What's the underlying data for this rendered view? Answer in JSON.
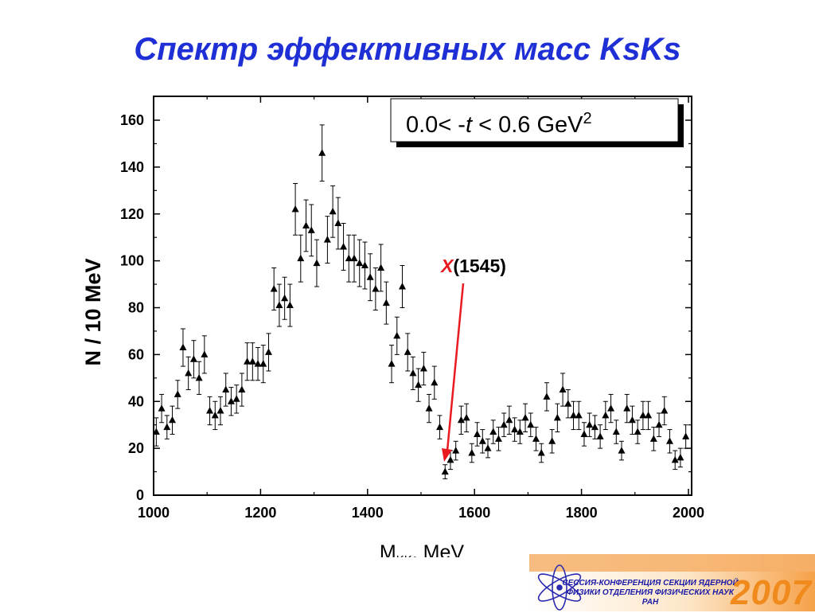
{
  "slide": {
    "title": "Спектр эффективных масс KsKs"
  },
  "chart_data": {
    "type": "scatter",
    "title": "",
    "xlabel_main": "M",
    "xlabel_sub": "KK",
    "xlabel_tail": ", MeV",
    "ylabel": "N / 10 MeV",
    "xlim": [
      1000,
      2000
    ],
    "ylim": [
      0,
      160
    ],
    "x_ticks": [
      "1000",
      "1200",
      "1400",
      "1600",
      "1800",
      "2000"
    ],
    "y_ticks": [
      "0",
      "20",
      "40",
      "60",
      "80",
      "100",
      "120",
      "140",
      "160"
    ],
    "legend_box": {
      "prefix": "0.0< -",
      "var": "t",
      "middle": " < 0.6 GeV",
      "sup": "2",
      "placement": "top-right"
    },
    "annotation": {
      "label_var": "X",
      "label_rest": "(1545)",
      "x": 1545,
      "y": 14,
      "color": "#e8191f"
    },
    "marker": "triangle",
    "series": [
      {
        "x": [
          1005,
          1015,
          1025,
          1035,
          1045,
          1055,
          1065,
          1075,
          1085,
          1095,
          1105,
          1115,
          1125,
          1135,
          1145,
          1155,
          1165,
          1175,
          1185,
          1195,
          1205,
          1215,
          1225,
          1235,
          1245,
          1255,
          1265,
          1275,
          1285,
          1295,
          1305,
          1315,
          1325,
          1335,
          1345,
          1355,
          1365,
          1375,
          1385,
          1395,
          1405,
          1415,
          1425,
          1435,
          1445,
          1455,
          1465,
          1475,
          1485,
          1495,
          1505,
          1515,
          1525,
          1535,
          1545,
          1555,
          1565,
          1575,
          1585,
          1595,
          1605,
          1615,
          1625,
          1635,
          1645,
          1655,
          1665,
          1675,
          1685,
          1695,
          1705,
          1715,
          1725,
          1735,
          1745,
          1755,
          1765,
          1775,
          1785,
          1795,
          1805,
          1815,
          1825,
          1835,
          1845,
          1855,
          1865,
          1875,
          1885,
          1895,
          1905,
          1915,
          1925,
          1935,
          1945,
          1955,
          1965,
          1975,
          1985,
          1995
        ],
        "y": [
          27,
          37,
          29,
          32,
          43,
          63,
          52,
          58,
          50,
          60,
          36,
          34,
          36,
          45,
          40,
          41,
          45,
          57,
          57,
          56,
          56,
          61,
          88,
          81,
          84,
          81,
          122,
          101,
          115,
          113,
          99,
          146,
          109,
          121,
          116,
          106,
          101,
          101,
          99,
          98,
          93,
          88,
          97,
          82,
          56,
          68,
          89,
          61,
          52,
          47,
          54,
          37,
          48,
          29,
          10,
          15,
          19,
          32,
          33,
          18,
          26,
          23,
          20,
          27,
          24,
          30,
          32,
          28,
          27,
          33,
          30,
          24,
          18,
          42,
          23,
          33,
          45,
          39,
          34,
          34,
          26,
          30,
          29,
          25,
          34,
          37,
          27,
          19,
          37,
          32,
          27,
          34,
          34,
          24,
          30,
          36,
          23,
          15,
          16,
          25
        ],
        "err": [
          6,
          6,
          5,
          6,
          6,
          8,
          7,
          8,
          7,
          8,
          6,
          6,
          6,
          7,
          6,
          6,
          7,
          8,
          8,
          7,
          8,
          8,
          9,
          9,
          9,
          9,
          11,
          10,
          11,
          11,
          10,
          12,
          10,
          11,
          11,
          10,
          10,
          10,
          10,
          10,
          10,
          9,
          10,
          9,
          8,
          8,
          9,
          8,
          7,
          7,
          7,
          6,
          7,
          5,
          3,
          4,
          4,
          6,
          6,
          4,
          5,
          5,
          4,
          5,
          5,
          5,
          6,
          5,
          5,
          6,
          5,
          5,
          4,
          6,
          5,
          6,
          7,
          6,
          6,
          6,
          5,
          5,
          5,
          5,
          6,
          6,
          5,
          4,
          6,
          6,
          5,
          6,
          6,
          5,
          5,
          6,
          5,
          4,
          4,
          5
        ]
      }
    ]
  },
  "logo": {
    "line1": "СЕССИЯ-КОНФЕРЕНЦИЯ СЕКЦИИ ЯДЕРНОЙ",
    "line2": "ФИЗИКИ ОТДЕЛЕНИЯ ФИЗИЧЕСКИХ НАУК",
    "line3": "РАН",
    "year": "2007"
  },
  "colors": {
    "title": "#1f2fd6",
    "annotation": "#e8191f",
    "logo_orange": "#f08a1c",
    "logo_blue": "#1a1aa8"
  }
}
